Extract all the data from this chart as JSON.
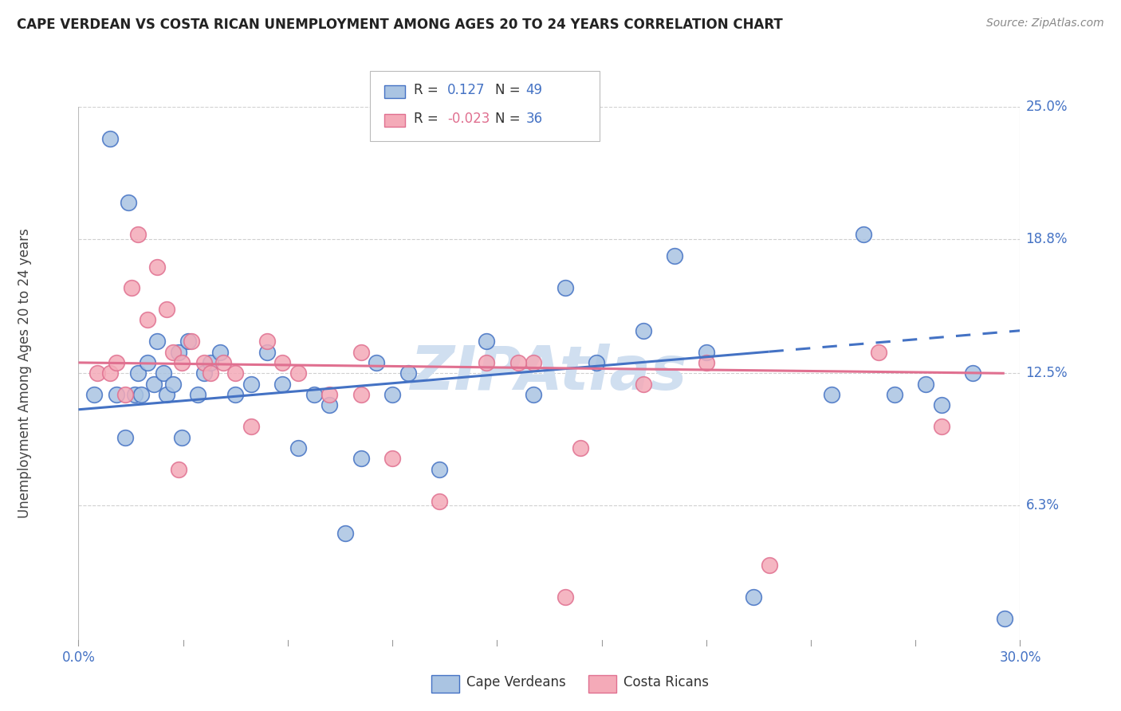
{
  "title": "CAPE VERDEAN VS COSTA RICAN UNEMPLOYMENT AMONG AGES 20 TO 24 YEARS CORRELATION CHART",
  "source": "Source: ZipAtlas.com",
  "ylabel": "Unemployment Among Ages 20 to 24 years",
  "xlim": [
    0.0,
    0.3
  ],
  "ylim": [
    0.0,
    0.25
  ],
  "ytick_vals": [
    0.063,
    0.125,
    0.188,
    0.25
  ],
  "ytick_labels": [
    "6.3%",
    "12.5%",
    "18.8%",
    "25.0%"
  ],
  "gridline_y": [
    0.063,
    0.125,
    0.188,
    0.25
  ],
  "cape_verdean_color": "#aac4e2",
  "costa_rican_color": "#f4aab8",
  "blue_line_color": "#4472c4",
  "pink_line_color": "#e07090",
  "label_color": "#4472c4",
  "watermark_color": "#d0dff0",
  "R_cape": 0.127,
  "N_cape": 49,
  "R_costa": -0.023,
  "N_costa": 36,
  "cape_verdean_x": [
    0.005,
    0.01,
    0.012,
    0.015,
    0.016,
    0.018,
    0.019,
    0.02,
    0.022,
    0.024,
    0.025,
    0.027,
    0.028,
    0.03,
    0.032,
    0.033,
    0.035,
    0.038,
    0.04,
    0.042,
    0.045,
    0.05,
    0.055,
    0.06,
    0.065,
    0.07,
    0.075,
    0.08,
    0.085,
    0.09,
    0.095,
    0.1,
    0.105,
    0.115,
    0.13,
    0.145,
    0.155,
    0.165,
    0.18,
    0.19,
    0.2,
    0.215,
    0.24,
    0.25,
    0.26,
    0.27,
    0.275,
    0.285,
    0.295
  ],
  "cape_verdean_y": [
    0.115,
    0.235,
    0.115,
    0.095,
    0.205,
    0.115,
    0.125,
    0.115,
    0.13,
    0.12,
    0.14,
    0.125,
    0.115,
    0.12,
    0.135,
    0.095,
    0.14,
    0.115,
    0.125,
    0.13,
    0.135,
    0.115,
    0.12,
    0.135,
    0.12,
    0.09,
    0.115,
    0.11,
    0.05,
    0.085,
    0.13,
    0.115,
    0.125,
    0.08,
    0.14,
    0.115,
    0.165,
    0.13,
    0.145,
    0.18,
    0.135,
    0.02,
    0.115,
    0.19,
    0.115,
    0.12,
    0.11,
    0.125,
    0.01
  ],
  "costa_rican_x": [
    0.006,
    0.01,
    0.012,
    0.015,
    0.017,
    0.019,
    0.022,
    0.025,
    0.028,
    0.03,
    0.033,
    0.036,
    0.04,
    0.042,
    0.046,
    0.05,
    0.055,
    0.06,
    0.065,
    0.07,
    0.08,
    0.09,
    0.1,
    0.115,
    0.13,
    0.145,
    0.16,
    0.18,
    0.2,
    0.22,
    0.255,
    0.275,
    0.155,
    0.032,
    0.09,
    0.14
  ],
  "costa_rican_y": [
    0.125,
    0.125,
    0.13,
    0.115,
    0.165,
    0.19,
    0.15,
    0.175,
    0.155,
    0.135,
    0.13,
    0.14,
    0.13,
    0.125,
    0.13,
    0.125,
    0.1,
    0.14,
    0.13,
    0.125,
    0.115,
    0.115,
    0.085,
    0.065,
    0.13,
    0.13,
    0.09,
    0.12,
    0.13,
    0.035,
    0.135,
    0.1,
    0.02,
    0.08,
    0.135,
    0.13
  ]
}
